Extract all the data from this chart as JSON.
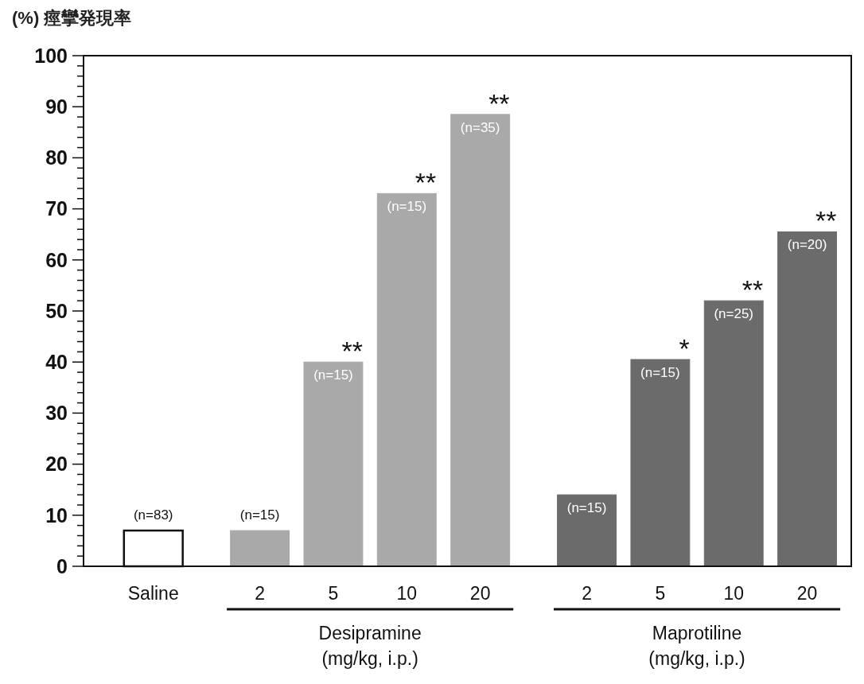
{
  "chart_data": {
    "type": "bar",
    "ylabel": "(%) 痙攣発現率",
    "xlabel": "(mg/kg, i.p.)",
    "categories": [
      "Saline",
      "2",
      "5",
      "10",
      "20",
      "2",
      "5",
      "10",
      "20"
    ],
    "series": [
      {
        "color": "#ffffff",
        "values": [
          7,
          null,
          null,
          null,
          null,
          null,
          null,
          null,
          null
        ]
      },
      {
        "color": "#a9a9a9",
        "values": [
          null,
          7,
          40,
          73,
          88.5,
          null,
          null,
          null,
          null
        ]
      },
      {
        "color": "#6b6b6b",
        "values": [
          null,
          null,
          null,
          null,
          null,
          14,
          40.5,
          52,
          65.5
        ]
      }
    ],
    "annotations": [
      "(n=83)",
      "(n=15)",
      "(n=15)",
      "(n=15)",
      "(n=35)",
      "(n=15)",
      "(n=15)",
      "(n=25)",
      "(n=20)",
      "Desipramine",
      "Maprotiline",
      "**",
      "**",
      "**",
      "*",
      "**",
      "**"
    ],
    "ylim": [
      0,
      100
    ],
    "yticks": [
      0,
      {
        "value": 2,
        "label": null
      },
      {
        "value": 4,
        "label": null
      },
      {
        "value": 6,
        "label": null
      },
      {
        "value": 8,
        "label": null
      },
      10,
      {
        "value": 12,
        "label": null
      },
      {
        "value": 14,
        "label": null
      },
      {
        "value": 16,
        "label": null
      },
      {
        "value": 18,
        "label": null
      },
      20,
      {
        "value": 22,
        "label": null
      },
      {
        "value": 24,
        "label": null
      },
      {
        "value": 26,
        "label": null
      },
      {
        "value": 28,
        "label": null
      },
      30,
      {
        "value": 32,
        "label": null
      },
      {
        "value": 34,
        "label": null
      },
      {
        "value": 36,
        "label": null
      },
      {
        "value": 38,
        "label": null
      },
      40,
      {
        "value": 42,
        "label": null
      },
      {
        "value": 44,
        "label": null
      },
      {
        "value": 46,
        "label": null
      },
      {
        "value": 48,
        "label": null
      },
      50,
      {
        "value": 52,
        "label": null
      },
      {
        "value": 54,
        "label": null
      },
      {
        "value": 56,
        "label": null
      },
      {
        "value": 58,
        "label": null
      },
      60,
      {
        "value": 62,
        "label": null
      },
      {
        "value": 64,
        "label": null
      },
      {
        "value": 66,
        "label": null
      },
      {
        "value": 68,
        "label": null
      },
      70,
      {
        "value": 72,
        "label": null
      },
      {
        "value": 74,
        "label": null
      },
      {
        "value": 76,
        "label": null
      },
      {
        "value": 78,
        "label": null
      },
      80,
      {
        "value": 82,
        "label": null
      },
      {
        "value": 84,
        "label": null
      },
      {
        "value": 86,
        "label": null
      },
      {
        "value": 88,
        "label": null
      },
      90,
      {
        "value": 92,
        "label": null
      },
      {
        "value": 94,
        "label": null
      },
      {
        "value": 96,
        "label": null
      },
      {
        "value": 98,
        "label": null
      },
      100
    ]
  }
}
